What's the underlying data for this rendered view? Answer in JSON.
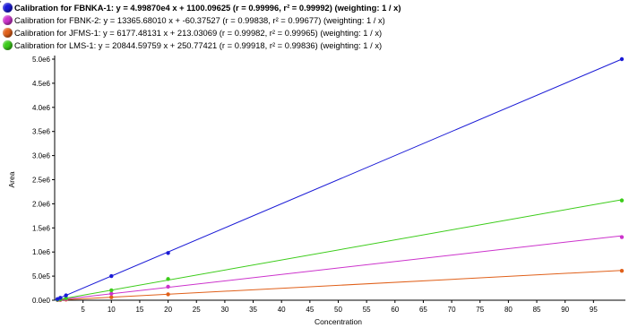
{
  "legend_marker": "'",
  "legend": [
    {
      "label": "Calibration for FBNKA-1: y = 4.99870e4 x + 1100.09625 (r = 0.99996, r² = 0.99992)  (weighting: 1 / x)",
      "color": "#1a1ad6",
      "bold": true
    },
    {
      "label": "Calibration for FBNK-2: y = 13365.68010 x + -60.37527 (r = 0.99838, r² = 0.99677)  (weighting: 1 / x)",
      "color": "#cc33cc",
      "bold": false
    },
    {
      "label": "Calibration for JFMS-1: y = 6177.48131 x + 213.03069 (r = 0.99982, r² = 0.99965)  (weighting: 1 / x)",
      "color": "#e0601a",
      "bold": false
    },
    {
      "label": "Calibration for LMS-1: y = 20844.59759 x + 250.77421 (r = 0.99918, r² = 0.99836)  (weighting: 1 / x)",
      "color": "#3ccc1a",
      "bold": false
    }
  ],
  "chart_data": {
    "type": "scatter",
    "xlabel": "Concentration",
    "ylabel": "Area",
    "xlim": [
      0,
      100
    ],
    "ylim": [
      0,
      5000000
    ],
    "x_ticks": [
      5,
      10,
      15,
      20,
      25,
      30,
      35,
      40,
      45,
      50,
      55,
      60,
      65,
      70,
      75,
      80,
      85,
      90,
      95
    ],
    "y_ticks": [
      {
        "value": 0,
        "label": "0.0e0"
      },
      {
        "value": 500000,
        "label": "5.0e5"
      },
      {
        "value": 1000000,
        "label": "1.0e6"
      },
      {
        "value": 1500000,
        "label": "1.5e6"
      },
      {
        "value": 2000000,
        "label": "2.0e6"
      },
      {
        "value": 2500000,
        "label": "2.5e6"
      },
      {
        "value": 3000000,
        "label": "3.0e6"
      },
      {
        "value": 3500000,
        "label": "3.5e6"
      },
      {
        "value": 4000000,
        "label": "4.0e6"
      },
      {
        "value": 4500000,
        "label": "4.5e6"
      },
      {
        "value": 5000000,
        "label": "5.0e6"
      }
    ],
    "grid": false,
    "legend_position": "top-left",
    "series": [
      {
        "name": "FBNKA-1",
        "color": "#1a1ad6",
        "fit": {
          "slope": 49987.0,
          "intercept": 1100.09625
        },
        "points": [
          [
            0.5,
            25000
          ],
          [
            1,
            50000
          ],
          [
            2,
            100000
          ],
          [
            10,
            500000
          ],
          [
            20,
            980000
          ],
          [
            100,
            5000000
          ]
        ]
      },
      {
        "name": "FBNK-2",
        "color": "#cc33cc",
        "fit": {
          "slope": 13365.6801,
          "intercept": -60.37527
        },
        "points": [
          [
            0.5,
            6000
          ],
          [
            1,
            13000
          ],
          [
            2,
            26000
          ],
          [
            10,
            135000
          ],
          [
            20,
            280000
          ],
          [
            100,
            1310000
          ]
        ]
      },
      {
        "name": "JFMS-1",
        "color": "#e0601a",
        "fit": {
          "slope": 6177.48131,
          "intercept": 213.03069
        },
        "points": [
          [
            0.5,
            3000
          ],
          [
            1,
            6000
          ],
          [
            2,
            12000
          ],
          [
            10,
            62000
          ],
          [
            20,
            122000
          ],
          [
            100,
            610000
          ]
        ]
      },
      {
        "name": "LMS-1",
        "color": "#3ccc1a",
        "fit": {
          "slope": 20844.59759,
          "intercept": 250.77421
        },
        "points": [
          [
            0.5,
            10000
          ],
          [
            1,
            21000
          ],
          [
            2,
            42000
          ],
          [
            10,
            205000
          ],
          [
            20,
            440000
          ],
          [
            100,
            2070000
          ]
        ]
      }
    ]
  }
}
